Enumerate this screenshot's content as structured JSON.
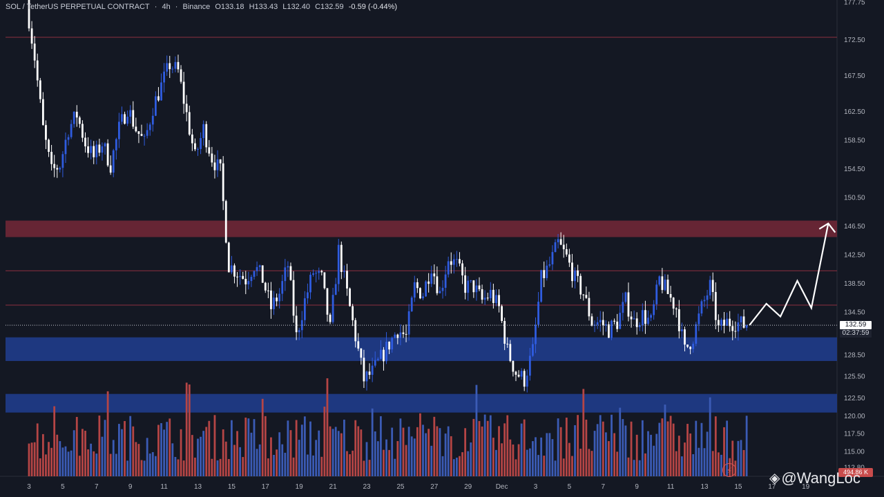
{
  "header": {
    "symbol": "SOL / TetherUS PERPETUAL CONTRACT",
    "sep1": "·",
    "interval": "4h",
    "sep2": "·",
    "exchange": "Binance",
    "open": "O133.18",
    "high": "H133.43",
    "low": "L132.40",
    "close": "C132.59",
    "change": "-0.59 (-0.44%)"
  },
  "price_tag": {
    "price": "132.59",
    "countdown": "02:37:59"
  },
  "volume_tag": "494.86 K",
  "watermark": {
    "icon": "binance-square-icon",
    "text": "@WangLoc"
  },
  "colors": {
    "background": "#141823",
    "up_candle": "#2f5ce0",
    "down_candle": "#ffffff",
    "vol_up": "#3b5bb5",
    "vol_down": "#b54545",
    "resistance_zone": "#6a2636",
    "support_zone": "#1f3a86",
    "level_line": "#8e2f3f",
    "projection": "#ffffff"
  },
  "chart_data": {
    "type": "candlestick",
    "interval": "4h",
    "y_axis": {
      "min": 111.5,
      "max": 178.0,
      "ticks": [
        "177.75",
        "172.50",
        "167.50",
        "162.50",
        "158.50",
        "154.50",
        "150.50",
        "146.50",
        "142.50",
        "138.50",
        "134.50",
        "128.50",
        "125.50",
        "122.50",
        "120.00",
        "117.50",
        "115.00",
        "112.80"
      ]
    },
    "x_axis": {
      "ticks": [
        {
          "label": "3",
          "bar": 0
        },
        {
          "label": "5",
          "bar": 12
        },
        {
          "label": "7",
          "bar": 24
        },
        {
          "label": "9",
          "bar": 36
        },
        {
          "label": "11",
          "bar": 48
        },
        {
          "label": "13",
          "bar": 60
        },
        {
          "label": "15",
          "bar": 72
        },
        {
          "label": "17",
          "bar": 84
        },
        {
          "label": "19",
          "bar": 96
        },
        {
          "label": "21",
          "bar": 108
        },
        {
          "label": "23",
          "bar": 120
        },
        {
          "label": "25",
          "bar": 132
        },
        {
          "label": "27",
          "bar": 144
        },
        {
          "label": "29",
          "bar": 156
        },
        {
          "label": "Dec",
          "bar": 168
        },
        {
          "label": "3",
          "bar": 180
        },
        {
          "label": "5",
          "bar": 192
        },
        {
          "label": "7",
          "bar": 204
        },
        {
          "label": "9",
          "bar": 216
        },
        {
          "label": "11",
          "bar": 228
        },
        {
          "label": "13",
          "bar": 240
        },
        {
          "label": "15",
          "bar": 252
        },
        {
          "label": "17",
          "bar": 264
        },
        {
          "label": "19",
          "bar": 276
        }
      ]
    },
    "horizontal_levels": [
      172.8,
      140.2,
      135.4
    ],
    "zones": [
      {
        "kind": "resistance",
        "from": 144.9,
        "to": 147.2
      },
      {
        "kind": "support",
        "from": 127.6,
        "to": 130.9
      },
      {
        "kind": "support",
        "from": 120.4,
        "to": 123.0
      }
    ],
    "current_price": 132.59,
    "anchors": [
      {
        "bar": 0,
        "price": 178.0
      },
      {
        "bar": 3,
        "price": 170.0
      },
      {
        "bar": 6,
        "price": 160.0
      },
      {
        "bar": 9,
        "price": 154.0
      },
      {
        "bar": 12,
        "price": 155.0
      },
      {
        "bar": 15,
        "price": 160.0
      },
      {
        "bar": 18,
        "price": 162.0
      },
      {
        "bar": 21,
        "price": 158.0
      },
      {
        "bar": 24,
        "price": 156.0
      },
      {
        "bar": 27,
        "price": 158.0
      },
      {
        "bar": 30,
        "price": 155.0
      },
      {
        "bar": 33,
        "price": 160.0
      },
      {
        "bar": 36,
        "price": 163.0
      },
      {
        "bar": 39,
        "price": 160.0
      },
      {
        "bar": 42,
        "price": 158.0
      },
      {
        "bar": 45,
        "price": 163.0
      },
      {
        "bar": 48,
        "price": 166.0
      },
      {
        "bar": 51,
        "price": 169.0
      },
      {
        "bar": 54,
        "price": 168.0
      },
      {
        "bar": 57,
        "price": 162.0
      },
      {
        "bar": 60,
        "price": 156.0
      },
      {
        "bar": 63,
        "price": 160.0
      },
      {
        "bar": 66,
        "price": 156.0
      },
      {
        "bar": 69,
        "price": 154.0
      },
      {
        "bar": 72,
        "price": 141.0
      },
      {
        "bar": 75,
        "price": 140.0
      },
      {
        "bar": 78,
        "price": 139.0
      },
      {
        "bar": 81,
        "price": 141.0
      },
      {
        "bar": 84,
        "price": 139.0
      },
      {
        "bar": 87,
        "price": 135.0
      },
      {
        "bar": 90,
        "price": 137.0
      },
      {
        "bar": 93,
        "price": 141.0
      },
      {
        "bar": 96,
        "price": 131.0
      },
      {
        "bar": 99,
        "price": 136.0
      },
      {
        "bar": 102,
        "price": 140.0
      },
      {
        "bar": 105,
        "price": 139.0
      },
      {
        "bar": 108,
        "price": 132.0
      },
      {
        "bar": 111,
        "price": 143.0
      },
      {
        "bar": 114,
        "price": 137.0
      },
      {
        "bar": 117,
        "price": 131.0
      },
      {
        "bar": 120,
        "price": 125.0
      },
      {
        "bar": 123,
        "price": 126.0
      },
      {
        "bar": 126,
        "price": 128.0
      },
      {
        "bar": 129,
        "price": 130.0
      },
      {
        "bar": 132,
        "price": 132.0
      },
      {
        "bar": 135,
        "price": 131.0
      },
      {
        "bar": 138,
        "price": 138.0
      },
      {
        "bar": 141,
        "price": 137.0
      },
      {
        "bar": 144,
        "price": 141.0
      },
      {
        "bar": 147,
        "price": 137.0
      },
      {
        "bar": 150,
        "price": 142.0
      },
      {
        "bar": 153,
        "price": 141.0
      },
      {
        "bar": 156,
        "price": 138.0
      },
      {
        "bar": 159,
        "price": 138.0
      },
      {
        "bar": 162,
        "price": 136.0
      },
      {
        "bar": 165,
        "price": 137.0
      },
      {
        "bar": 168,
        "price": 135.0
      },
      {
        "bar": 171,
        "price": 129.0
      },
      {
        "bar": 174,
        "price": 126.0
      },
      {
        "bar": 177,
        "price": 125.0
      },
      {
        "bar": 180,
        "price": 129.0
      },
      {
        "bar": 183,
        "price": 139.0
      },
      {
        "bar": 186,
        "price": 141.0
      },
      {
        "bar": 189,
        "price": 144.0
      },
      {
        "bar": 192,
        "price": 142.0
      },
      {
        "bar": 195,
        "price": 139.0
      },
      {
        "bar": 198,
        "price": 137.0
      },
      {
        "bar": 201,
        "price": 133.0
      },
      {
        "bar": 204,
        "price": 133.0
      },
      {
        "bar": 207,
        "price": 132.0
      },
      {
        "bar": 210,
        "price": 133.0
      },
      {
        "bar": 213,
        "price": 136.0
      },
      {
        "bar": 216,
        "price": 133.0
      },
      {
        "bar": 219,
        "price": 134.0
      },
      {
        "bar": 222,
        "price": 133.0
      },
      {
        "bar": 225,
        "price": 139.0
      },
      {
        "bar": 228,
        "price": 137.0
      },
      {
        "bar": 231,
        "price": 135.0
      },
      {
        "bar": 234,
        "price": 129.0
      },
      {
        "bar": 237,
        "price": 131.0
      },
      {
        "bar": 240,
        "price": 135.0
      },
      {
        "bar": 243,
        "price": 138.0
      },
      {
        "bar": 246,
        "price": 132.0
      },
      {
        "bar": 249,
        "price": 133.0
      },
      {
        "bar": 252,
        "price": 133.0
      },
      {
        "bar": 255,
        "price": 132.6
      }
    ],
    "projection_path": [
      {
        "bar": 256,
        "price": 132.6
      },
      {
        "bar": 262,
        "price": 135.6
      },
      {
        "bar": 267,
        "price": 133.8
      },
      {
        "bar": 273,
        "price": 138.8
      },
      {
        "bar": 278,
        "price": 135.0
      },
      {
        "bar": 284,
        "price": 146.8
      }
    ]
  }
}
